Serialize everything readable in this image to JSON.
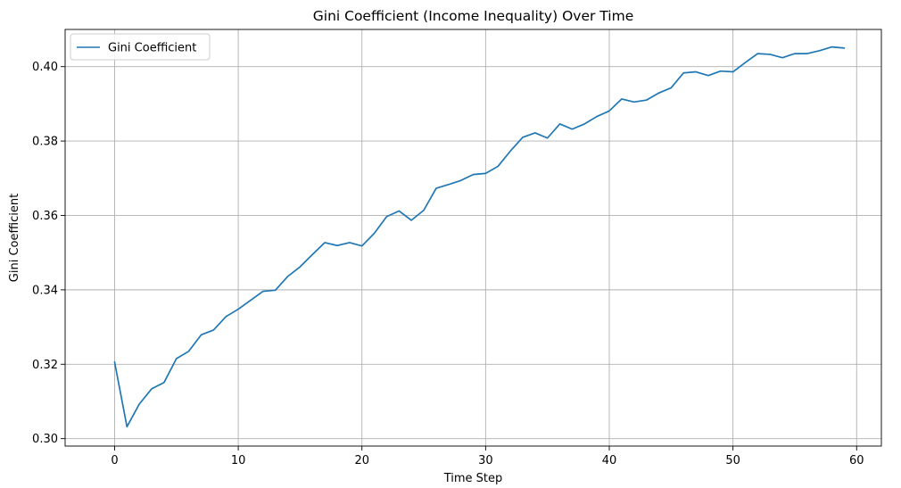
{
  "chart_data": {
    "type": "line",
    "title": "Gini Coefficient (Income Inequality) Over Time",
    "xlabel": "Time Step",
    "ylabel": "Gini Coefficient",
    "xlim": [
      -4,
      62
    ],
    "ylim": [
      0.298,
      0.41
    ],
    "xticks": [
      0,
      10,
      20,
      30,
      40,
      50,
      60
    ],
    "xtick_labels": [
      "0",
      "10",
      "20",
      "30",
      "40",
      "50",
      "60"
    ],
    "yticks": [
      0.3,
      0.32,
      0.34,
      0.36,
      0.38,
      0.4
    ],
    "ytick_labels": [
      "0.30",
      "0.32",
      "0.34",
      "0.36",
      "0.38",
      "0.40"
    ],
    "grid": true,
    "legend_position": "top-left",
    "series": [
      {
        "name": "Gini Coefficient",
        "color": "#1f77b4",
        "x": [
          0,
          1,
          2,
          3,
          4,
          5,
          6,
          7,
          8,
          9,
          10,
          11,
          12,
          13,
          14,
          15,
          16,
          17,
          18,
          19,
          20,
          21,
          22,
          23,
          24,
          25,
          26,
          27,
          28,
          29,
          30,
          31,
          32,
          33,
          34,
          35,
          36,
          37,
          38,
          39,
          40,
          41,
          42,
          43,
          44,
          45,
          46,
          47,
          48,
          49,
          50,
          51,
          52,
          53,
          54,
          55,
          56,
          57,
          58,
          59
        ],
        "values": [
          0.3206,
          0.3032,
          0.3093,
          0.3134,
          0.3151,
          0.3215,
          0.3235,
          0.3279,
          0.3292,
          0.3328,
          0.3348,
          0.3372,
          0.3396,
          0.3399,
          0.3436,
          0.3462,
          0.3495,
          0.3527,
          0.3519,
          0.3527,
          0.3518,
          0.3552,
          0.3597,
          0.3612,
          0.3587,
          0.3614,
          0.3673,
          0.3683,
          0.3694,
          0.371,
          0.3713,
          0.3732,
          0.3773,
          0.381,
          0.3822,
          0.3808,
          0.3846,
          0.3832,
          0.3846,
          0.3866,
          0.3881,
          0.3913,
          0.3905,
          0.391,
          0.3929,
          0.3943,
          0.3983,
          0.3986,
          0.3976,
          0.3988,
          0.3986,
          0.4011,
          0.4035,
          0.4033,
          0.4024,
          0.4035,
          0.4035,
          0.4043,
          0.4053,
          0.405
        ]
      }
    ]
  }
}
